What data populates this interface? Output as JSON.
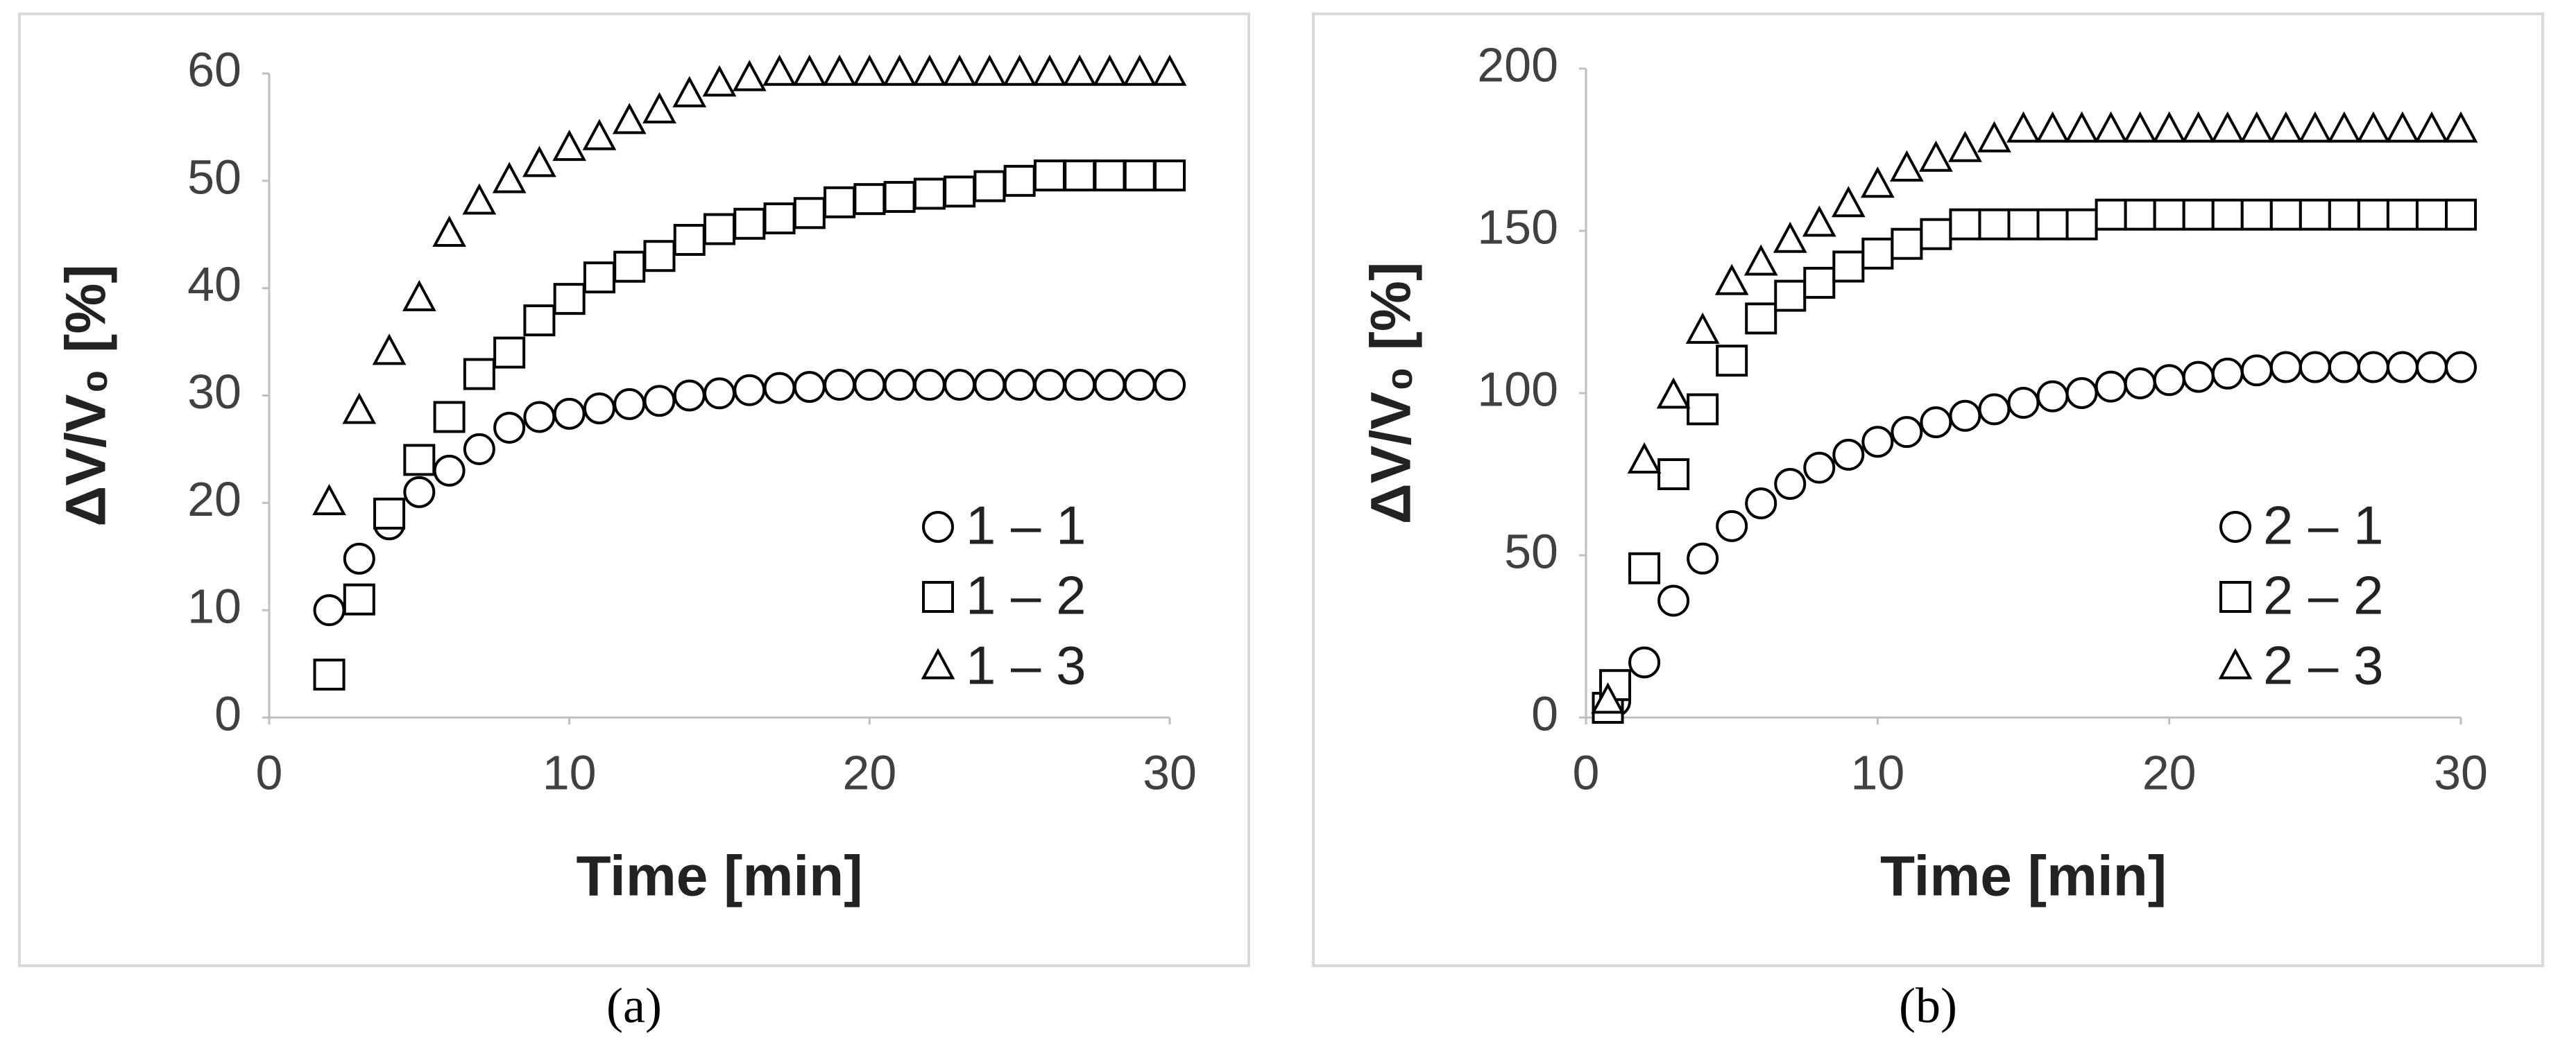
{
  "chart_data": [
    {
      "type": "scatter",
      "caption": "(a)",
      "x_label": "Time [min]",
      "y_label": "ΔV/V₀ [%]",
      "xlim": [
        0,
        30
      ],
      "xticks": [
        0,
        10,
        20,
        30
      ],
      "ylim": [
        0,
        60
      ],
      "yticks": [
        0,
        10,
        20,
        30,
        40,
        50,
        60
      ],
      "legend": "lower-right",
      "series": [
        {
          "name": "1 – 1",
          "marker": "circle",
          "color": "#000000",
          "x": [
            2,
            3,
            4,
            5,
            6,
            7,
            8,
            9,
            10,
            11,
            12,
            13,
            14,
            15,
            16,
            17,
            18,
            19,
            20,
            21,
            22,
            23,
            24,
            25,
            26,
            27,
            28,
            29,
            30
          ],
          "values": [
            10,
            14.8,
            18,
            21,
            23,
            25,
            27,
            28,
            28.3,
            28.8,
            29.2,
            29.5,
            30,
            30.2,
            30.5,
            30.7,
            30.8,
            31,
            31,
            31,
            31,
            31,
            31,
            31,
            31,
            31,
            31,
            31,
            31
          ]
        },
        {
          "name": "1 – 2",
          "marker": "square",
          "color": "#000000",
          "x": [
            2,
            3,
            4,
            5,
            6,
            7,
            8,
            9,
            10,
            11,
            12,
            13,
            14,
            15,
            16,
            17,
            18,
            19,
            20,
            21,
            22,
            23,
            24,
            25,
            26,
            27,
            28,
            29,
            30
          ],
          "values": [
            4,
            11,
            19,
            24,
            28,
            32,
            34,
            37,
            39,
            41,
            42,
            43,
            44.5,
            45.5,
            46,
            46.5,
            47,
            48,
            48.3,
            48.5,
            48.8,
            49,
            49.5,
            50,
            50.5,
            50.5,
            50.5,
            50.5,
            50.5
          ]
        },
        {
          "name": "1 – 3",
          "marker": "triangle",
          "color": "#000000",
          "x": [
            2,
            3,
            4,
            5,
            6,
            7,
            8,
            9,
            10,
            11,
            12,
            13,
            14,
            15,
            16,
            17,
            18,
            19,
            20,
            21,
            22,
            23,
            24,
            25,
            26,
            27,
            28,
            29,
            30
          ],
          "values": [
            20,
            28.5,
            34,
            39,
            45,
            48,
            50,
            51.5,
            53,
            54,
            55.5,
            56.5,
            58,
            59,
            59.5,
            60,
            60,
            60,
            60,
            60,
            60,
            60,
            60,
            60,
            60,
            60,
            60,
            60,
            60
          ]
        }
      ]
    },
    {
      "type": "scatter",
      "caption": "(b)",
      "x_label": "Time [min]",
      "y_label": "ΔV/V₀ [%]",
      "xlim": [
        0,
        30
      ],
      "xticks": [
        0,
        10,
        20,
        30
      ],
      "ylim": [
        0,
        200
      ],
      "yticks": [
        0,
        50,
        100,
        150,
        200
      ],
      "legend": "lower-right",
      "series": [
        {
          "name": "2 – 1",
          "marker": "circle",
          "color": "#000000",
          "x": [
            1,
            2,
            3,
            4,
            5,
            6,
            7,
            8,
            9,
            10,
            11,
            12,
            13,
            14,
            15,
            16,
            17,
            18,
            19,
            20,
            21,
            22,
            23,
            24,
            25,
            26,
            27,
            28,
            29,
            30
          ],
          "values": [
            5,
            17,
            36,
            49,
            59,
            66,
            72,
            77,
            81,
            85,
            88,
            91,
            93,
            95,
            97,
            99,
            100,
            102,
            103,
            104,
            105,
            106,
            107,
            108,
            108,
            108,
            108,
            108,
            108,
            108
          ]
        },
        {
          "name": "2 – 2",
          "marker": "square",
          "color": "#000000",
          "x": [
            0.75,
            1,
            2,
            3,
            4,
            5,
            6,
            7,
            8,
            9,
            10,
            11,
            12,
            13,
            14,
            15,
            16,
            17,
            18,
            19,
            20,
            21,
            22,
            23,
            24,
            25,
            26,
            27,
            28,
            29,
            30
          ],
          "values": [
            3,
            10,
            46,
            75,
            95,
            110,
            123,
            130,
            134,
            139,
            143,
            146,
            149,
            152,
            152,
            152,
            152,
            152,
            155,
            155,
            155,
            155,
            155,
            155,
            155,
            155,
            155,
            155,
            155,
            155,
            155
          ]
        },
        {
          "name": "2 – 3",
          "marker": "triangle",
          "color": "#000000",
          "x": [
            0.75,
            2,
            3,
            4,
            5,
            6,
            7,
            8,
            9,
            10,
            11,
            12,
            13,
            14,
            15,
            16,
            17,
            18,
            19,
            20,
            21,
            22,
            23,
            24,
            25,
            26,
            27,
            28,
            29,
            30
          ],
          "values": [
            5,
            79,
            99,
            119,
            134,
            140,
            147,
            152,
            158,
            164,
            169,
            172,
            175,
            178,
            181,
            181,
            181,
            181,
            181,
            181,
            181,
            181,
            181,
            181,
            181,
            181,
            181,
            181,
            181,
            181
          ]
        }
      ]
    }
  ]
}
